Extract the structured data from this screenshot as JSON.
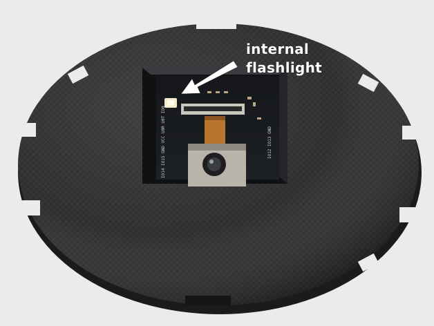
{
  "photo": {
    "subject": "",
    "background_color": "#ecebea",
    "case_color": "#2a2b2d"
  },
  "annotation": {
    "line1": "internal",
    "line2": "flashlight",
    "text_color": "#ffffff",
    "arrow_color": "#ffffff"
  },
  "board_silkscreen": {
    "left_pins": "IO14 IO15 GND VCC U0R U0T IO0",
    "right_pins": "IO12 IO13 GND"
  }
}
